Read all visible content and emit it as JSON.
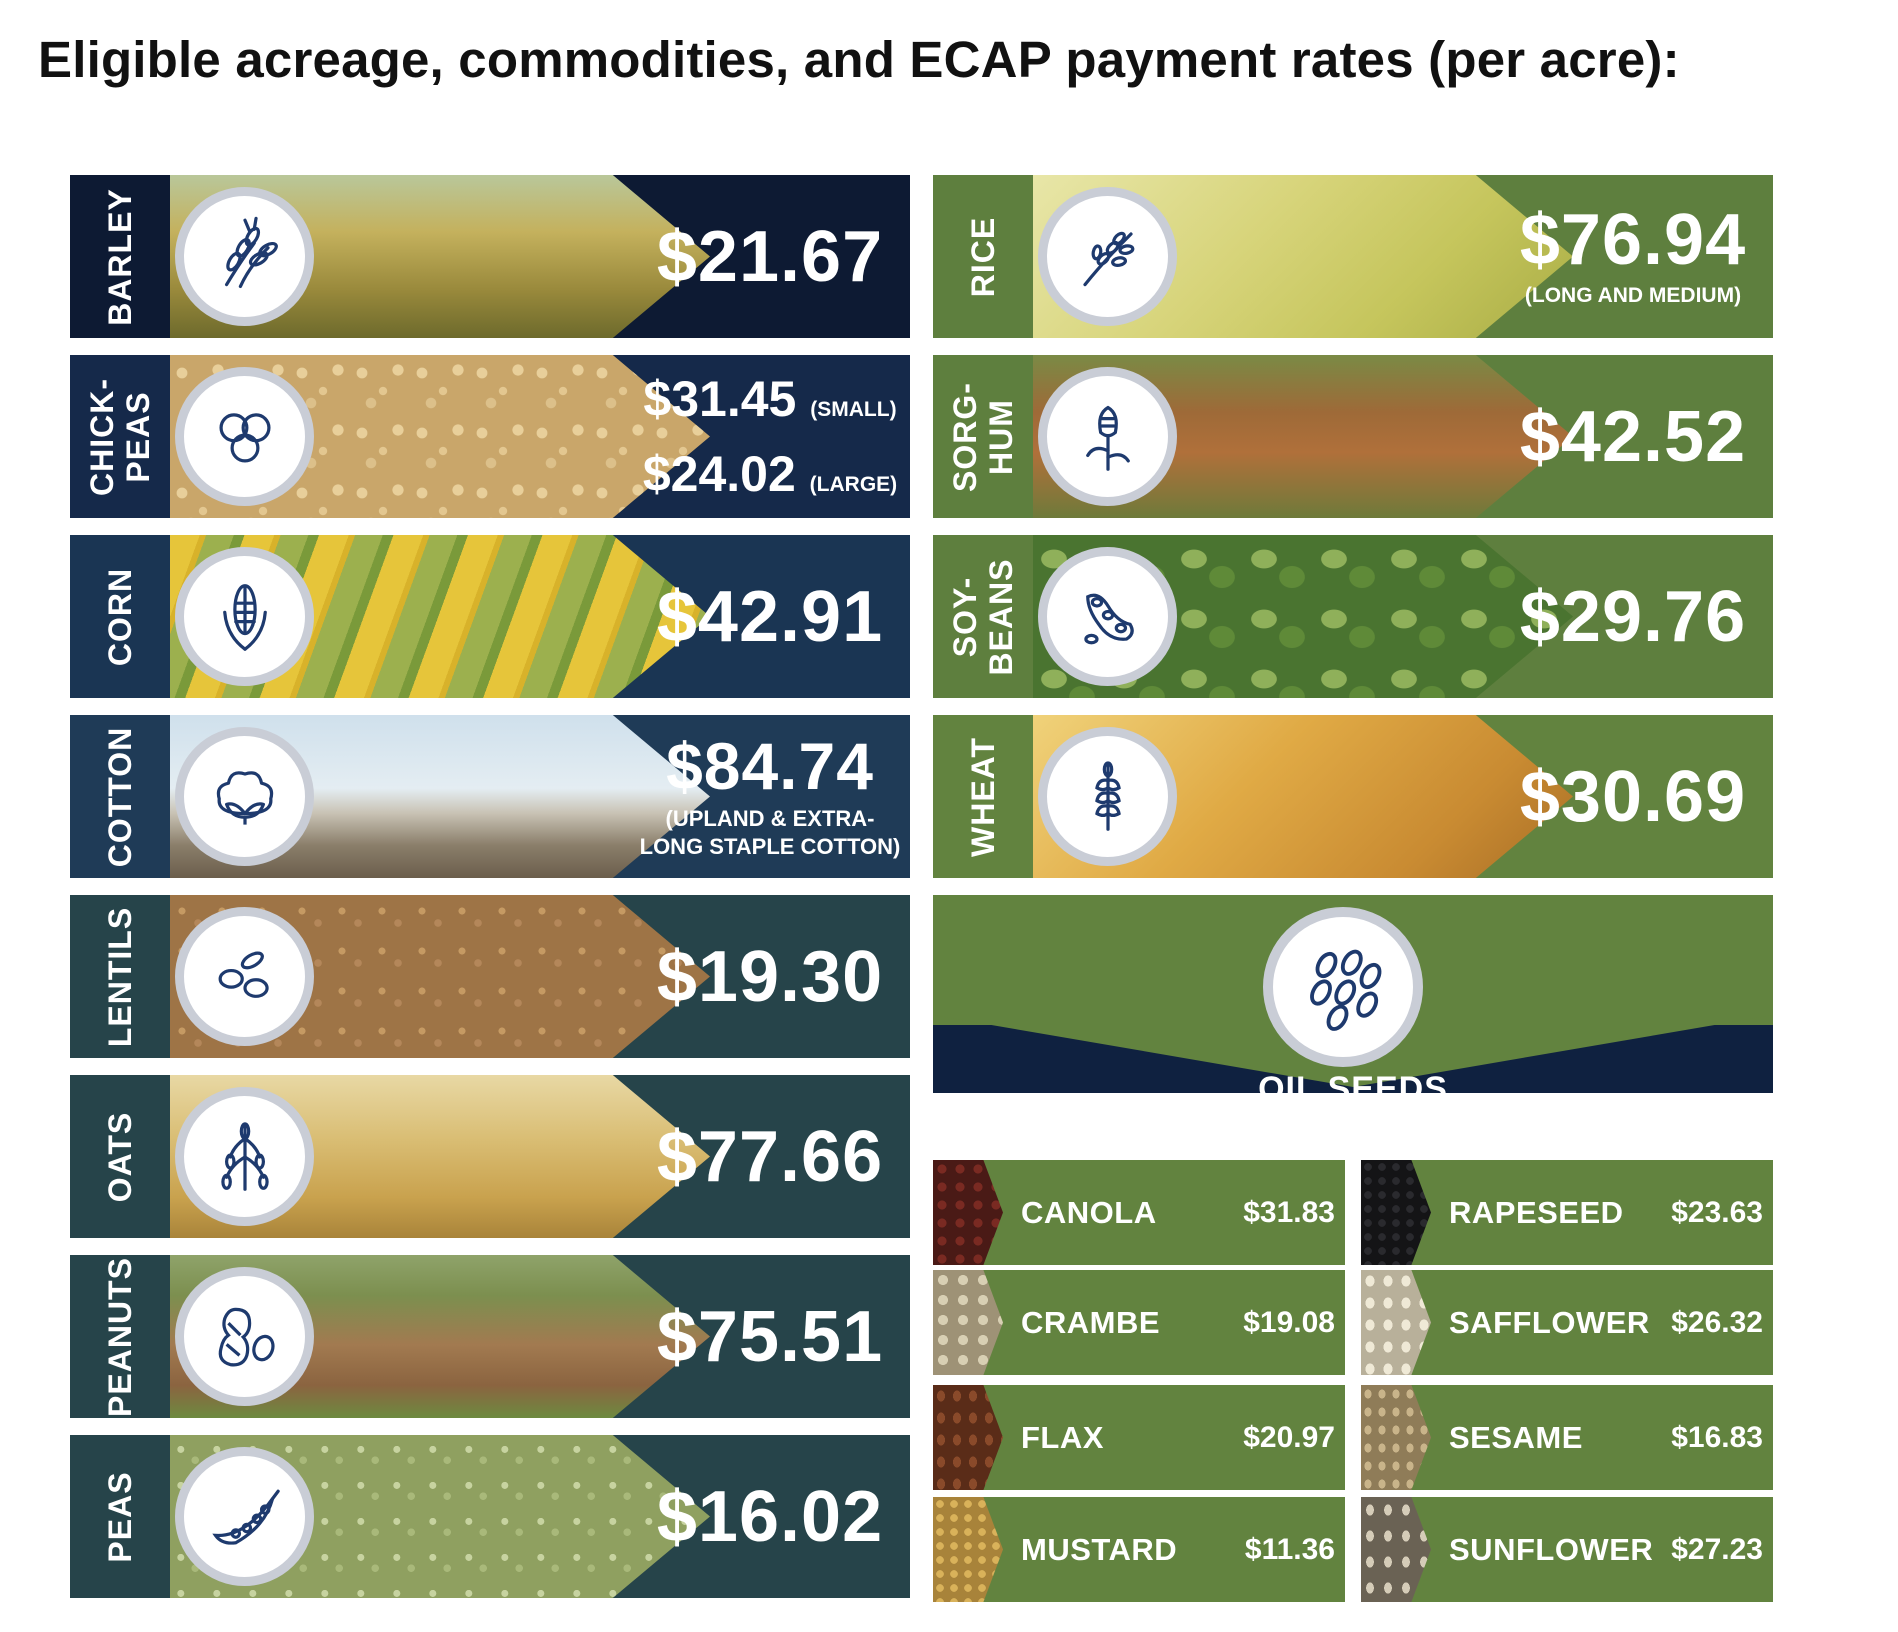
{
  "title": "Eligible acreage, commodities, and ECAP payment rates (per acre):",
  "left": [
    {
      "label": "BARLEY",
      "price": "$21.67",
      "icon": "barley-icon"
    },
    {
      "label": "CHICK-\nPEAS",
      "price1": "$31.45",
      "note1": "(SMALL)",
      "price2": "$24.02",
      "note2": "(LARGE)",
      "icon": "chickpeas-icon"
    },
    {
      "label": "CORN",
      "price": "$42.91",
      "icon": "corn-icon"
    },
    {
      "label": "COTTON",
      "price": "$84.74",
      "sub": "(UPLAND & EXTRA-LONG STAPLE COTTON)",
      "icon": "cotton-icon"
    },
    {
      "label": "LENTILS",
      "price": "$19.30",
      "icon": "lentils-icon"
    },
    {
      "label": "OATS",
      "price": "$77.66",
      "icon": "oats-icon"
    },
    {
      "label": "PEANUTS",
      "price": "$75.51",
      "icon": "peanuts-icon"
    },
    {
      "label": "PEAS",
      "price": "$16.02",
      "icon": "peas-icon"
    }
  ],
  "right": [
    {
      "label": "RICE",
      "price": "$76.94",
      "sub": "(LONG AND MEDIUM)",
      "icon": "rice-icon"
    },
    {
      "label": "SORG-\nHUM",
      "price": "$42.52",
      "icon": "sorghum-icon"
    },
    {
      "label": "SOY-\nBEANS",
      "price": "$29.76",
      "icon": "soybeans-icon"
    },
    {
      "label": "WHEAT",
      "price": "$30.69",
      "icon": "wheat-icon"
    }
  ],
  "oilseeds": {
    "label": "OIL SEEDS",
    "items": [
      {
        "name": "CANOLA",
        "price": "$31.83"
      },
      {
        "name": "RAPESEED",
        "price": "$23.63"
      },
      {
        "name": "CRAMBE",
        "price": "$19.08"
      },
      {
        "name": "SAFFLOWER",
        "price": "$26.32"
      },
      {
        "name": "FLAX",
        "price": "$20.97"
      },
      {
        "name": "SESAME",
        "price": "$16.83"
      },
      {
        "name": "MUSTARD",
        "price": "$11.36"
      },
      {
        "name": "SUNFLOWER",
        "price": "$27.23"
      }
    ]
  },
  "colors": {
    "navy": "#15294a",
    "green": "#62833f",
    "icon_line": "#1e3a6e"
  }
}
